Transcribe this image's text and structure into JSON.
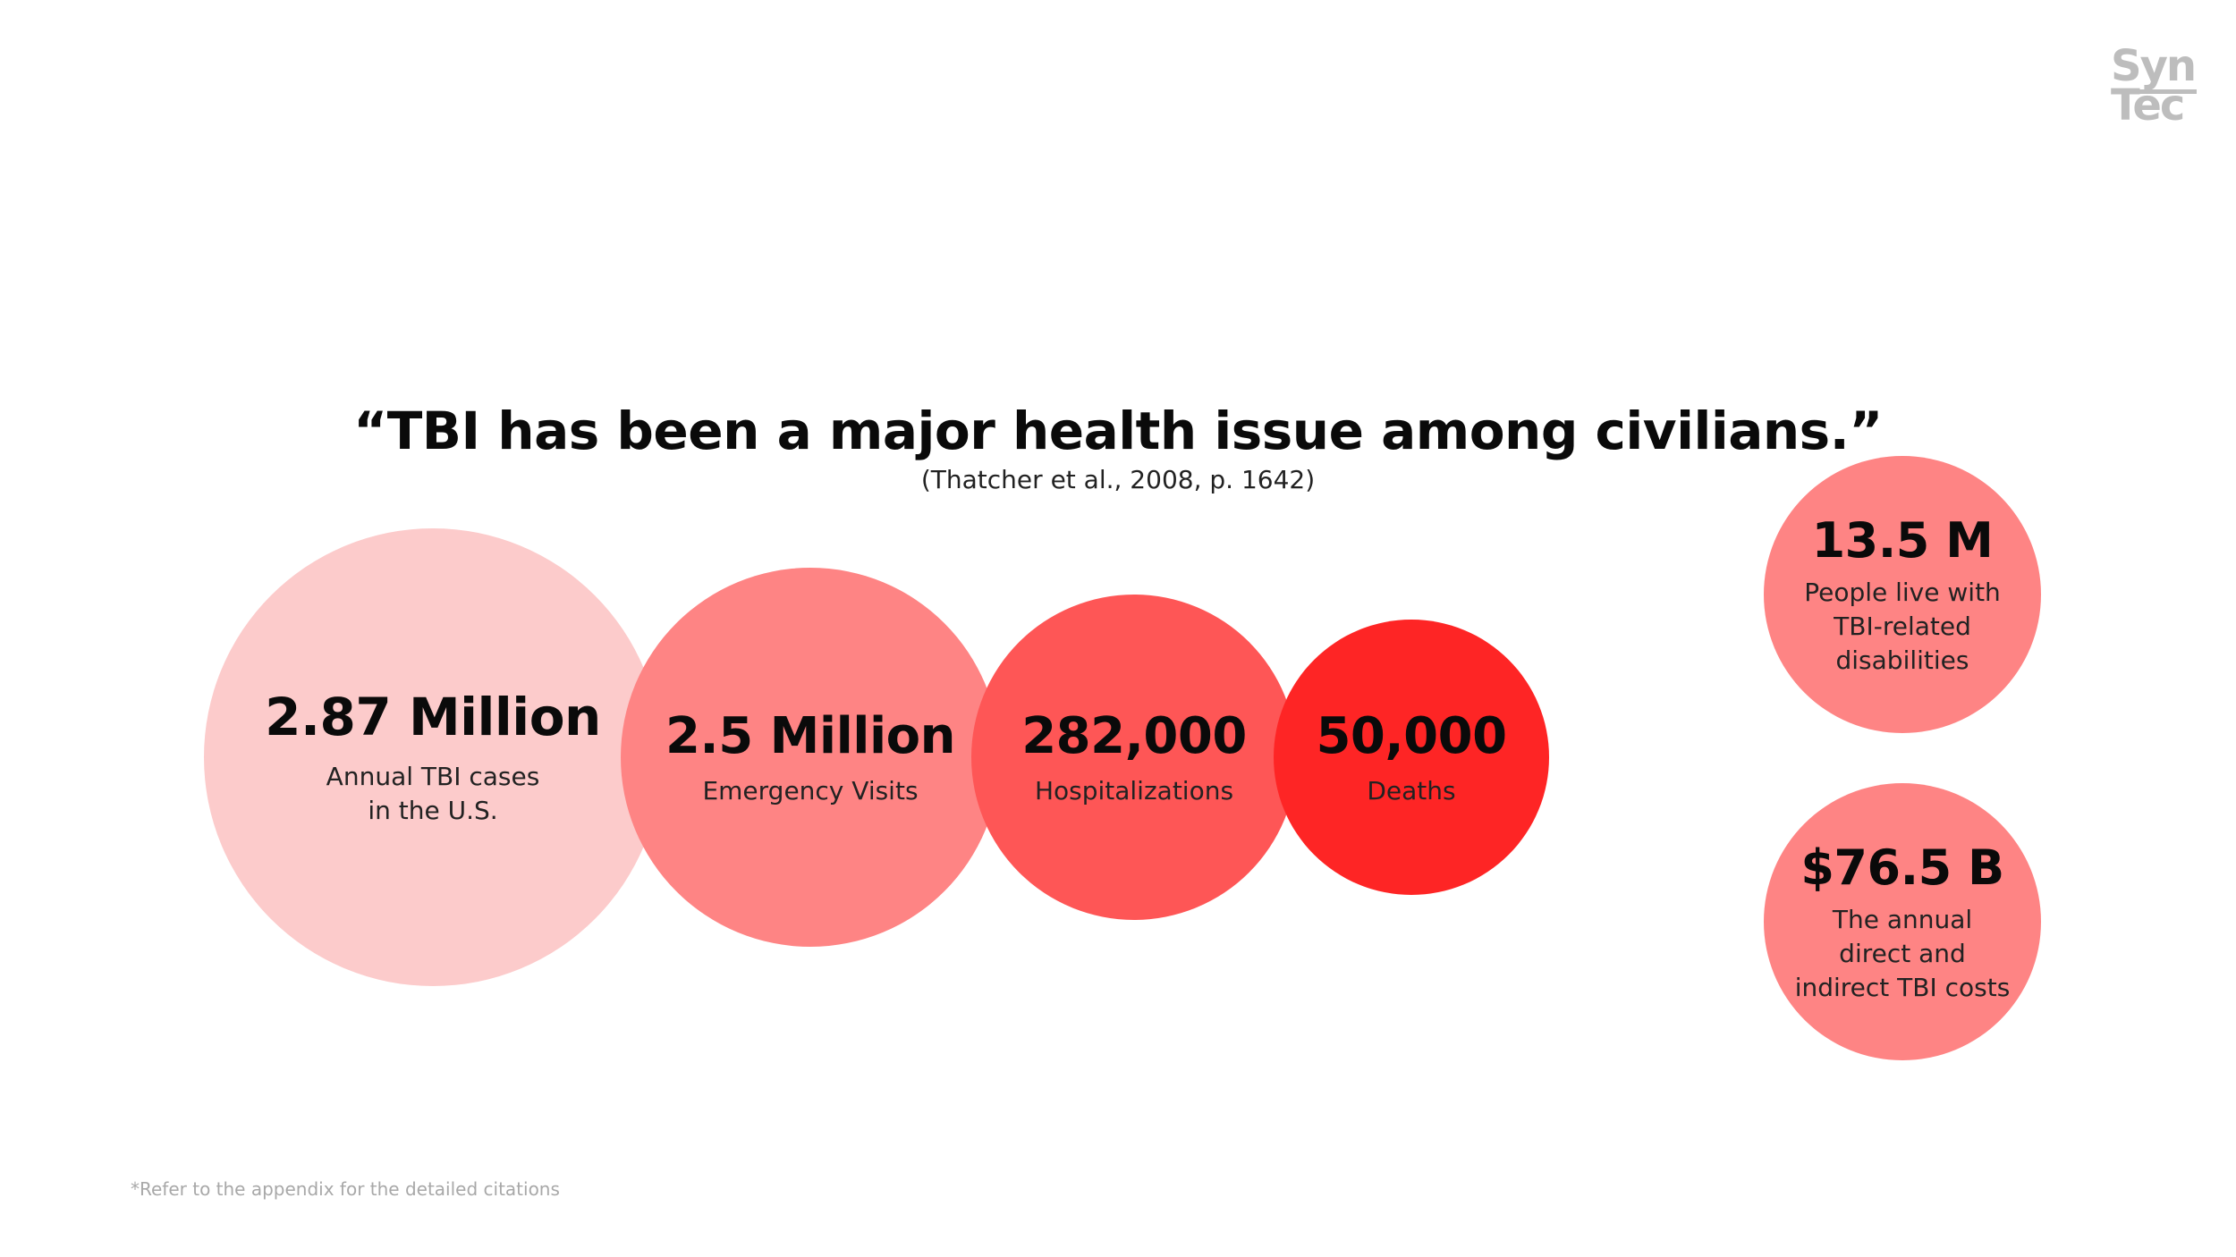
{
  "logo": {
    "line1": "Syn",
    "line2": "Tec"
  },
  "header": {
    "quote": "“TBI has been a major health issue among civilians.”",
    "citation": "(Thatcher et al., 2008, p. 1642)"
  },
  "stats": [
    {
      "value": "2.87 Million",
      "label": "Annual TBI cases\nin the U.S.",
      "color": "#fccbcb"
    },
    {
      "value": "2.5 Million",
      "label": "Emergency Visits",
      "color": "#fe8484"
    },
    {
      "value": "282,000",
      "label": "Hospitalizations",
      "color": "#fe5656"
    },
    {
      "value": "50,000",
      "label": "Deaths",
      "color": "#fe2525"
    }
  ],
  "side_stats": [
    {
      "value": "13.5 M",
      "label": "People live with\nTBI-related\ndisabilities",
      "color": "#fe8484"
    },
    {
      "value": "$76.5 B",
      "label": "The annual\ndirect and\nindirect TBI costs",
      "color": "#fe8484"
    }
  ],
  "footnote": "*Refer to the appendix for the detailed citations"
}
